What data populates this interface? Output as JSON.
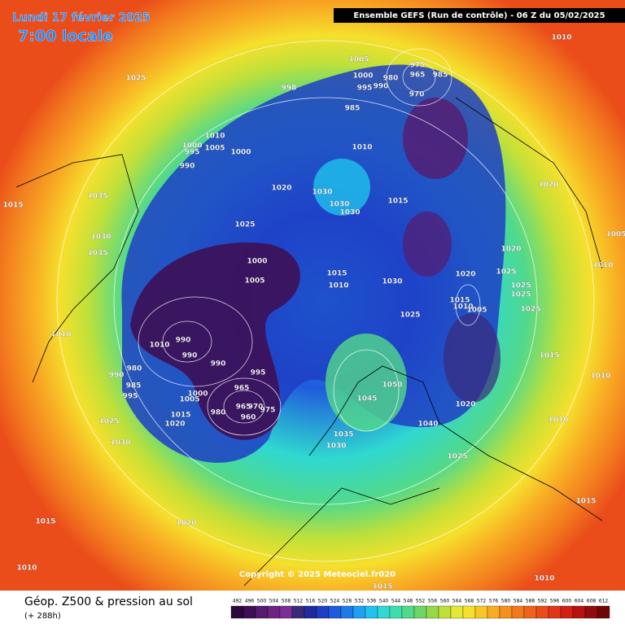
{
  "header": {
    "date": "Lundi 17 février 2025",
    "time": "7:00 locale",
    "run": "Ensemble GEFS  (Run de contrôle)  -  06 Z du 05/02/2025"
  },
  "copyright": "Copyright © 2025 Meteociel.fr020",
  "footer": {
    "title": "Géop. Z500 & pression au sol",
    "lead": "(+ 288h)"
  },
  "scale": {
    "labels": [
      492,
      496,
      500,
      504,
      508,
      512,
      516,
      520,
      524,
      528,
      532,
      536,
      540,
      544,
      548,
      552,
      556,
      560,
      564,
      568,
      572,
      576,
      580,
      584,
      588,
      592,
      596,
      600,
      604,
      608,
      612
    ],
    "colors": [
      "#2a0a3a",
      "#3d0f55",
      "#561a6e",
      "#6e2383",
      "#7d2e96",
      "#3b2a7a",
      "#1f2a9c",
      "#1e3ec4",
      "#1f5bdc",
      "#1f7ae8",
      "#20a0f0",
      "#1fc3ee",
      "#2fd8d0",
      "#3fdcae",
      "#52d98a",
      "#6ed566",
      "#95d84a",
      "#bfe03a",
      "#e3e834",
      "#f5e02c",
      "#f8c628",
      "#f8ab24",
      "#f59020",
      "#f2781e",
      "#ee621c",
      "#ea4c1a",
      "#e23618",
      "#d22014",
      "#b81210",
      "#950a0a",
      "#700505"
    ]
  },
  "isobar_labels": [
    1010,
    1025,
    1005,
    975,
    980,
    965,
    985,
    1000,
    995,
    990,
    970,
    998,
    985,
    1010,
    995,
    1005,
    1000,
    990,
    1000,
    1010,
    1020,
    1030,
    1030,
    1030,
    1015,
    1020,
    1035,
    1015,
    1025,
    1030,
    1035,
    1020,
    1000,
    1015,
    1010,
    1030,
    1005,
    1020,
    1025,
    1025,
    1015,
    1010,
    1005,
    1025,
    1025,
    1025,
    1010,
    990,
    1010,
    990,
    990,
    1015,
    980,
    990,
    995,
    1050,
    985,
    965,
    995,
    1000,
    1005,
    1045,
    1020,
    965,
    970,
    975,
    1010,
    1015,
    980,
    960,
    1020,
    1025,
    1040,
    1010,
    1035,
    1030,
    1030,
    1025,
    1015,
    1020,
    1015,
    1010,
    1010,
    1015,
    1005,
    1010
  ]
}
